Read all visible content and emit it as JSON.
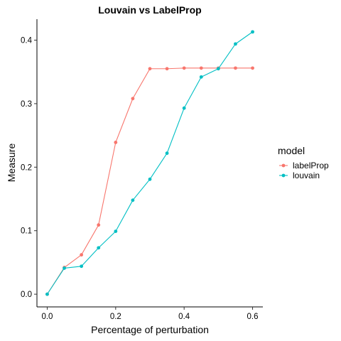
{
  "chart_data": {
    "type": "line",
    "title": "Louvain vs LabelProp",
    "xlabel": "Percentage of perturbation",
    "ylabel": "Measure",
    "xlim": [
      -0.03,
      0.63
    ],
    "ylim": [
      -0.02,
      0.433
    ],
    "x_ticks": [
      0.0,
      0.2,
      0.4,
      0.6
    ],
    "x_tick_labels": [
      "0.0",
      "0.2",
      "0.4",
      "0.6"
    ],
    "y_ticks": [
      0.0,
      0.1,
      0.2,
      0.3,
      0.4
    ],
    "y_tick_labels": [
      "0.0",
      "0.1",
      "0.2",
      "0.3",
      "0.4"
    ],
    "grid": false,
    "legend": {
      "title": "model",
      "placement": "right"
    },
    "x": [
      0.0,
      0.05,
      0.1,
      0.15,
      0.2,
      0.25,
      0.3,
      0.35,
      0.4,
      0.45,
      0.5,
      0.55,
      0.6
    ],
    "series": [
      {
        "name": "labelProp",
        "color": "#F8766D",
        "values": [
          0.0,
          0.042,
          0.062,
          0.109,
          0.239,
          0.308,
          0.355,
          0.355,
          0.356,
          0.356,
          0.356,
          0.356,
          0.356
        ]
      },
      {
        "name": "louvain",
        "color": "#00BFC4",
        "values": [
          0.0,
          0.041,
          0.044,
          0.073,
          0.099,
          0.148,
          0.181,
          0.222,
          0.293,
          0.342,
          0.355,
          0.394,
          0.413
        ]
      }
    ]
  }
}
